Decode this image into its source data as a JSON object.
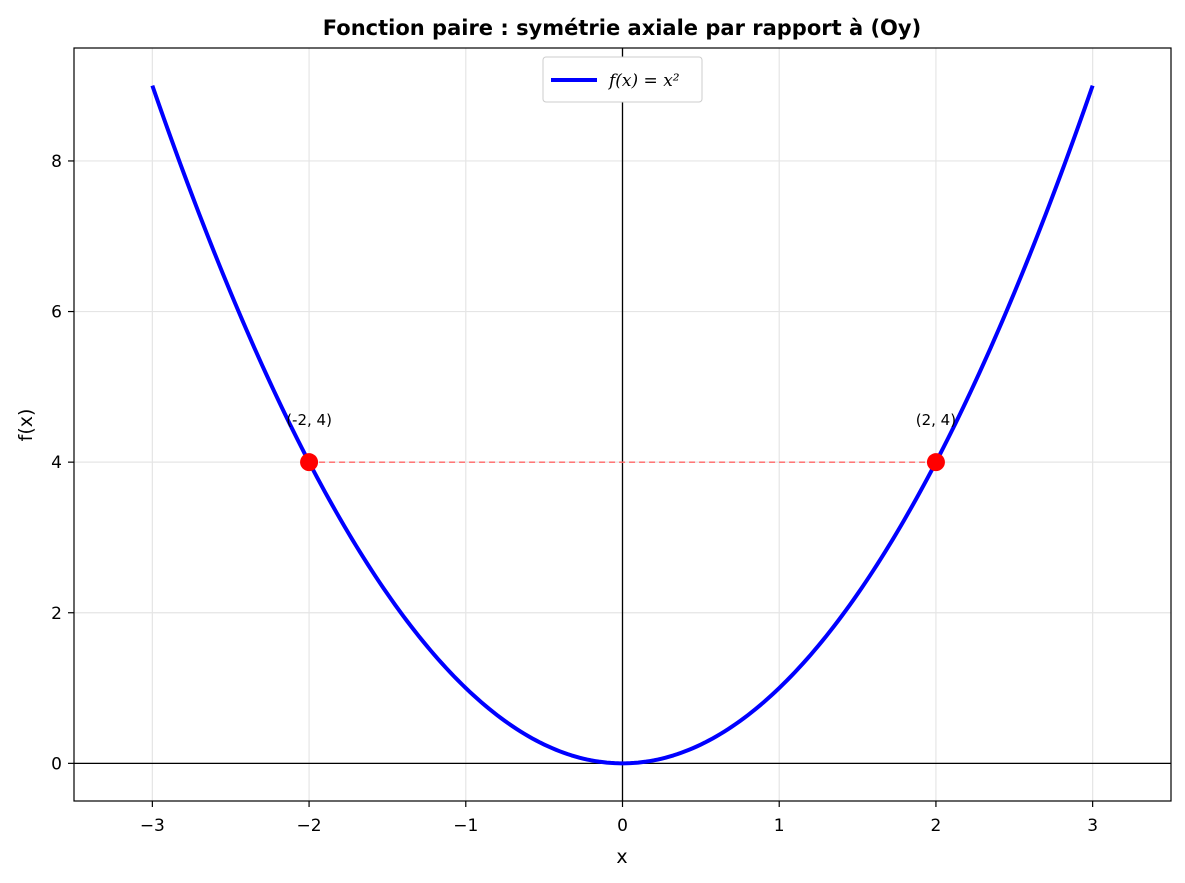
{
  "chart_data": {
    "type": "line",
    "title": "Fonction paire : symétrie axiale par rapport à (Oy)",
    "xlabel": "x",
    "ylabel": "f(x)",
    "xlim": [
      -3.5,
      3.5
    ],
    "ylim": [
      -0.5,
      9.5
    ],
    "xticks": [
      -3,
      -2,
      -1,
      0,
      1,
      2,
      3
    ],
    "xtick_labels": [
      "−3",
      "−2",
      "−1",
      "0",
      "1",
      "2",
      "3"
    ],
    "yticks": [
      0,
      2,
      4,
      6,
      8
    ],
    "ytick_labels": [
      "0",
      "2",
      "4",
      "6",
      "8"
    ],
    "grid": true,
    "legend_position": "top-center",
    "series": [
      {
        "name": "f(x) = x²",
        "function": "x^2",
        "x_range": [
          -3,
          3
        ],
        "color": "#0000ff",
        "x": [
          -3,
          -2.5,
          -2,
          -1.5,
          -1,
          -0.5,
          0,
          0.5,
          1,
          1.5,
          2,
          2.5,
          3
        ],
        "y": [
          9,
          6.25,
          4,
          2.25,
          1,
          0.25,
          0,
          0.25,
          1,
          2.25,
          4,
          6.25,
          9
        ]
      }
    ],
    "points": [
      {
        "x": -2,
        "y": 4,
        "label": "(-2, 4)",
        "color": "#ff0000"
      },
      {
        "x": 2,
        "y": 4,
        "label": "(2, 4)",
        "color": "#ff0000"
      }
    ],
    "symmetry_line": {
      "from": [
        -2,
        4
      ],
      "to": [
        2,
        4
      ],
      "color": "#ff6666",
      "style": "dashed"
    },
    "reference_lines": {
      "x_zero": true,
      "y_zero": true,
      "color": "#000000"
    }
  }
}
